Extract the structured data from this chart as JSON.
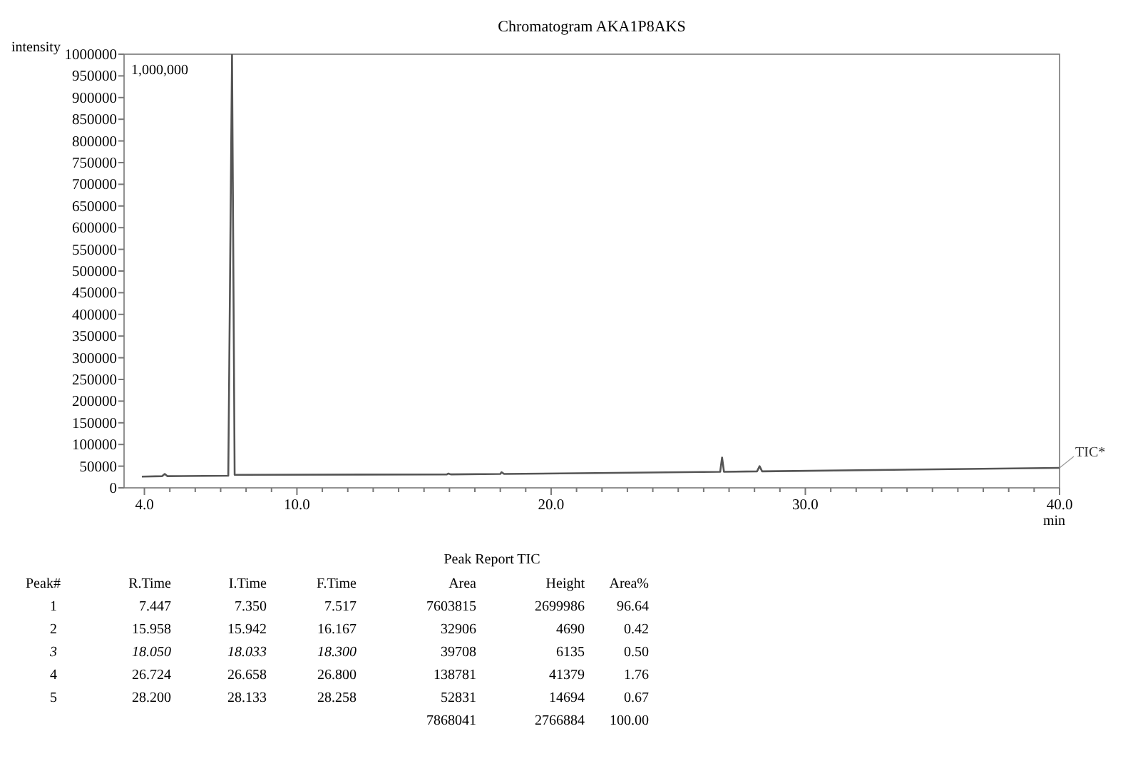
{
  "chart_data": {
    "type": "line",
    "title": "Chromatogram AKA1P8AKS",
    "xlabel": "min",
    "ylabel": "intensity",
    "xlim": [
      3.2,
      40
    ],
    "xticks": [
      {
        "value": 4,
        "label": "4.0"
      },
      {
        "value": 5,
        "label": null
      },
      {
        "value": 6,
        "label": null
      },
      {
        "value": 7,
        "label": null
      },
      {
        "value": 8,
        "label": null
      },
      {
        "value": 9,
        "label": null
      },
      {
        "value": 10,
        "label": "10.0"
      },
      {
        "value": 11,
        "label": null
      },
      {
        "value": 12,
        "label": null
      },
      {
        "value": 13,
        "label": null
      },
      {
        "value": 14,
        "label": null
      },
      {
        "value": 15,
        "label": null
      },
      {
        "value": 16,
        "label": null
      },
      {
        "value": 17,
        "label": null
      },
      {
        "value": 18,
        "label": null
      },
      {
        "value": 19,
        "label": null
      },
      {
        "value": 20,
        "label": "20.0"
      },
      {
        "value": 21,
        "label": null
      },
      {
        "value": 22,
        "label": null
      },
      {
        "value": 23,
        "label": null
      },
      {
        "value": 24,
        "label": null
      },
      {
        "value": 25,
        "label": null
      },
      {
        "value": 26,
        "label": null
      },
      {
        "value": 27,
        "label": null
      },
      {
        "value": 28,
        "label": null
      },
      {
        "value": 29,
        "label": null
      },
      {
        "value": 30,
        "label": "30.0"
      },
      {
        "value": 31,
        "label": null
      },
      {
        "value": 32,
        "label": null
      },
      {
        "value": 33,
        "label": null
      },
      {
        "value": 34,
        "label": null
      },
      {
        "value": 35,
        "label": null
      },
      {
        "value": 36,
        "label": null
      },
      {
        "value": 37,
        "label": null
      },
      {
        "value": 38,
        "label": null
      },
      {
        "value": 39,
        "label": null
      },
      {
        "value": 40,
        "label": "40.0"
      }
    ],
    "ylim": [
      0,
      1000000
    ],
    "yticks": [
      0,
      50000,
      100000,
      150000,
      200000,
      250000,
      300000,
      350000,
      400000,
      450000,
      500000,
      550000,
      600000,
      650000,
      700000,
      750000,
      800000,
      850000,
      900000,
      950000,
      1000000
    ],
    "grid": false,
    "line_style": "solid",
    "series": [
      {
        "name": "TIC*",
        "color": "#555555",
        "x": [
          3.9,
          4.7,
          4.8,
          4.9,
          7.3,
          7.447,
          7.55,
          15.9,
          15.958,
          16.05,
          18.0,
          18.05,
          18.15,
          26.65,
          26.724,
          26.8,
          28.1,
          28.2,
          28.3,
          40
        ],
        "values": [
          26000,
          27000,
          32000,
          27000,
          28000,
          1000000,
          30000,
          31000,
          33000,
          31000,
          32000,
          36000,
          32000,
          37000,
          70000,
          37000,
          38000,
          50000,
          38000,
          46000
        ]
      }
    ],
    "annotations": [
      "1,000,000",
      "Peak Report TIC",
      "Peak#",
      "R.Time",
      "I.Time",
      "F.Time",
      "Area",
      "Height",
      "Area%",
      "1",
      "7.447",
      "7.350",
      "7.517",
      "7603815",
      "2699986",
      "96.64",
      "2",
      "15.958",
      "15.942",
      "16.167",
      "32906",
      "4690",
      "0.42",
      "3",
      "18.050",
      "18.033",
      "18.300",
      "39708",
      "6135",
      "0.50",
      "4",
      "26.724",
      "26.658",
      "26.800",
      "138781",
      "41379",
      "1.76",
      "5",
      "28.200",
      "28.133",
      "28.258",
      "52831",
      "14694",
      "0.67",
      "7868041",
      "2766884",
      "100.00"
    ]
  }
}
